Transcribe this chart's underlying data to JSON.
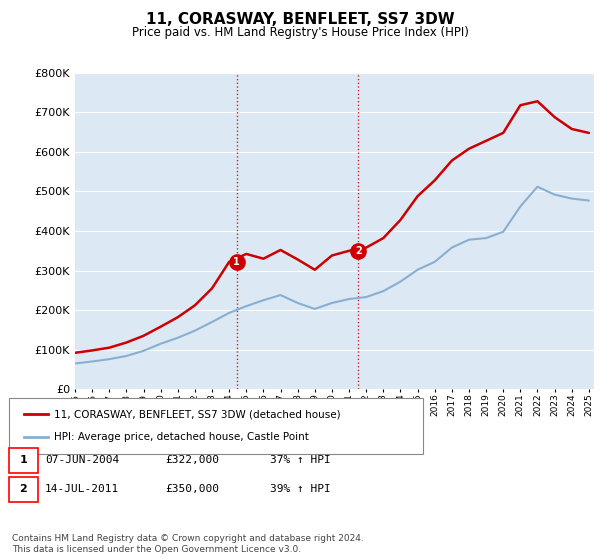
{
  "title": "11, CORASWAY, BENFLEET, SS7 3DW",
  "subtitle": "Price paid vs. HM Land Registry's House Price Index (HPI)",
  "ylim": [
    0,
    800000
  ],
  "yticks": [
    0,
    100000,
    200000,
    300000,
    400000,
    500000,
    600000,
    700000,
    800000
  ],
  "line1_color": "#cc0000",
  "line2_color": "#88afd0",
  "bg_color": "#dce9f5",
  "plot_bg": "#ffffff",
  "marker1_x": 2004.44,
  "marker1_y": 322000,
  "marker2_x": 2011.54,
  "marker2_y": 350000,
  "point1_label": "1",
  "point2_label": "2",
  "legend_line1": "11, CORASWAY, BENFLEET, SS7 3DW (detached house)",
  "legend_line2": "HPI: Average price, detached house, Castle Point",
  "table_rows": [
    {
      "num": "1",
      "date": "07-JUN-2004",
      "price": "£322,000",
      "hpi": "37% ↑ HPI"
    },
    {
      "num": "2",
      "date": "14-JUL-2011",
      "price": "£350,000",
      "hpi": "39% ↑ HPI"
    }
  ],
  "footnote1": "Contains HM Land Registry data © Crown copyright and database right 2024.",
  "footnote2": "This data is licensed under the Open Government Licence v3.0.",
  "hpi_years": [
    1995,
    1996,
    1997,
    1998,
    1999,
    2000,
    2001,
    2002,
    2003,
    2004,
    2005,
    2006,
    2007,
    2008,
    2009,
    2010,
    2011,
    2012,
    2013,
    2014,
    2015,
    2016,
    2017,
    2018,
    2019,
    2020,
    2021,
    2022,
    2023,
    2024,
    2025
  ],
  "hpi_values": [
    65000,
    70000,
    76000,
    84000,
    97000,
    115000,
    130000,
    148000,
    170000,
    193000,
    210000,
    225000,
    238000,
    218000,
    203000,
    218000,
    228000,
    233000,
    248000,
    272000,
    302000,
    322000,
    358000,
    378000,
    382000,
    398000,
    462000,
    512000,
    492000,
    482000,
    477000
  ],
  "price_years": [
    1995,
    1996,
    1997,
    1998,
    1999,
    2000,
    2001,
    2002,
    2003,
    2004,
    2005,
    2006,
    2007,
    2008,
    2009,
    2010,
    2011,
    2012,
    2013,
    2014,
    2015,
    2016,
    2017,
    2018,
    2019,
    2020,
    2021,
    2022,
    2023,
    2024,
    2025
  ],
  "price_values": [
    92000,
    98000,
    105000,
    118000,
    135000,
    158000,
    182000,
    212000,
    255000,
    322000,
    342000,
    330000,
    352000,
    328000,
    302000,
    338000,
    350000,
    358000,
    382000,
    428000,
    488000,
    528000,
    578000,
    608000,
    628000,
    648000,
    718000,
    728000,
    688000,
    658000,
    648000
  ],
  "vline1_x": 2004.44,
  "vline2_x": 2011.54,
  "xmin": 1995,
  "xmax": 2025.3
}
